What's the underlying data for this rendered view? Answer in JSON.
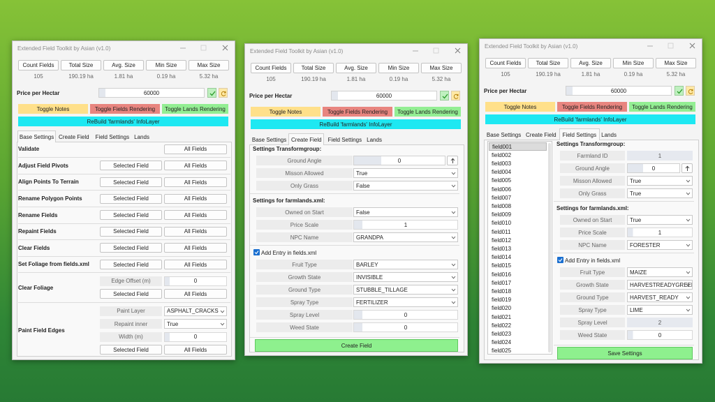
{
  "header": {
    "title": "Extended Field Toolkit by Asian (v1.0)",
    "stat_buttons": [
      "Count Fields",
      "Total Size",
      "Avg. Size",
      "Min Size",
      "Max Size"
    ],
    "stat_values": [
      "105",
      "190.19 ha",
      "1.81 ha",
      "0.19 ha",
      "5.32 ha"
    ],
    "price_label": "Price per Hectar",
    "price_value": "60000",
    "toggles": [
      "Toggle Notes",
      "Toggle Fields Rendering",
      "Toggle Lands Rendering"
    ],
    "rebuild": "ReBuild 'farmlands' InfoLayer",
    "tabs": [
      "Base Settings",
      "Create Field",
      "Field Settings",
      "Lands"
    ]
  },
  "windows": [
    {
      "active_tab": 0,
      "actions": [
        {
          "label": "Validate",
          "buttons": [
            "All Fields"
          ]
        },
        {
          "label": "Adjust Field Pivots",
          "buttons": [
            "Selected Field",
            "All Fields"
          ]
        },
        {
          "label": "Align Points To Terrain",
          "buttons": [
            "Selected Field",
            "All Fields"
          ]
        },
        {
          "label": "Rename Polygon Points",
          "buttons": [
            "Selected Field",
            "All Fields"
          ]
        },
        {
          "label": "Rename Fields",
          "buttons": [
            "Selected Field",
            "All Fields"
          ]
        },
        {
          "label": "Repaint Fields",
          "buttons": [
            "Selected Field",
            "All Fields"
          ]
        },
        {
          "label": "Clear Fields",
          "buttons": [
            "Selected Field",
            "All Fields"
          ]
        },
        {
          "label": "Set Foliage from fields.xml",
          "buttons": [
            "Selected Field",
            "All Fields"
          ]
        },
        {
          "label": "Clear Foliage",
          "fields": [
            {
              "label": "Edge Offset (m)",
              "value": "0",
              "kind": "number"
            }
          ],
          "buttons": [
            "Selected Field",
            "All Fields"
          ]
        },
        {
          "label": "Paint Field Edges",
          "fields": [
            {
              "label": "Paint Layer",
              "value": "ASPHALT_CRACKS",
              "kind": "select"
            },
            {
              "label": "Repaint inner",
              "value": "True",
              "kind": "select"
            },
            {
              "label": "Width (m)",
              "value": "0",
              "kind": "number"
            }
          ],
          "buttons": [
            "Selected Field",
            "All Fields"
          ]
        }
      ]
    },
    {
      "active_tab": 1,
      "sections": [
        {
          "heading": "Settings Transformgroup:",
          "fields": [
            {
              "label": "Ground Angle",
              "value": "0",
              "kind": "spin"
            },
            {
              "label": "Misson Allowed",
              "value": "True",
              "kind": "select"
            },
            {
              "label": "Only Grass",
              "value": "False",
              "kind": "select"
            }
          ]
        },
        {
          "heading": "Settings for farmlands.xml:",
          "fields": [
            {
              "label": "Owned on Start",
              "value": "False",
              "kind": "select"
            },
            {
              "label": "Price Scale",
              "value": "1",
              "kind": "number"
            },
            {
              "label": "NPC Name",
              "value": "GRANDPA",
              "kind": "select"
            }
          ]
        }
      ],
      "checkbox": "Add Entry in fields.xml",
      "entry_fields": [
        {
          "label": "Fruit Type",
          "value": "BARLEY",
          "kind": "select"
        },
        {
          "label": "Growth State",
          "value": "INVISIBLE",
          "kind": "select"
        },
        {
          "label": "Ground Type",
          "value": "STUBBLE_TILLAGE",
          "kind": "select"
        },
        {
          "label": "Spray Type",
          "value": "FERTILIZER",
          "kind": "select"
        },
        {
          "label": "Spray Level",
          "value": "0",
          "kind": "number"
        },
        {
          "label": "Weed State",
          "value": "0",
          "kind": "number"
        }
      ],
      "button": "Create Field"
    },
    {
      "active_tab": 2,
      "list": [
        "field001",
        "field002",
        "field003",
        "field004",
        "field005",
        "field006",
        "field007",
        "field008",
        "field009",
        "field010",
        "field011",
        "field012",
        "field013",
        "field014",
        "field015",
        "field016",
        "field017",
        "field018",
        "field019",
        "field020",
        "field021",
        "field022",
        "field023",
        "field024",
        "field025"
      ],
      "sections": [
        {
          "heading": "Settings Transformgroup:",
          "fields": [
            {
              "label": "Farmland ID",
              "value": "1",
              "kind": "readonly"
            },
            {
              "label": "Ground Angle",
              "value": "0",
              "kind": "spin"
            },
            {
              "label": "Misson Allowed",
              "value": "True",
              "kind": "select"
            },
            {
              "label": "Only Grass",
              "value": "True",
              "kind": "select"
            }
          ]
        },
        {
          "heading": "Settings for farmlands.xml:",
          "fields": [
            {
              "label": "Owned on Start",
              "value": "True",
              "kind": "select"
            },
            {
              "label": "Price Scale",
              "value": "1",
              "kind": "number"
            },
            {
              "label": "NPC Name",
              "value": "FORESTER",
              "kind": "select"
            }
          ]
        }
      ],
      "checkbox": "Add Entry in fields.xml",
      "entry_fields": [
        {
          "label": "Fruit Type",
          "value": "MAIZE",
          "kind": "select"
        },
        {
          "label": "Growth State",
          "value": "HARVESTREADYGREEN",
          "kind": "select"
        },
        {
          "label": "Ground Type",
          "value": "HARVEST_READY",
          "kind": "select"
        },
        {
          "label": "Spray Type",
          "value": "LIME",
          "kind": "select"
        },
        {
          "label": "Spray Level",
          "value": "2",
          "kind": "readonly"
        },
        {
          "label": "Weed State",
          "value": "0",
          "kind": "number"
        }
      ],
      "button": "Save Settings"
    }
  ]
}
